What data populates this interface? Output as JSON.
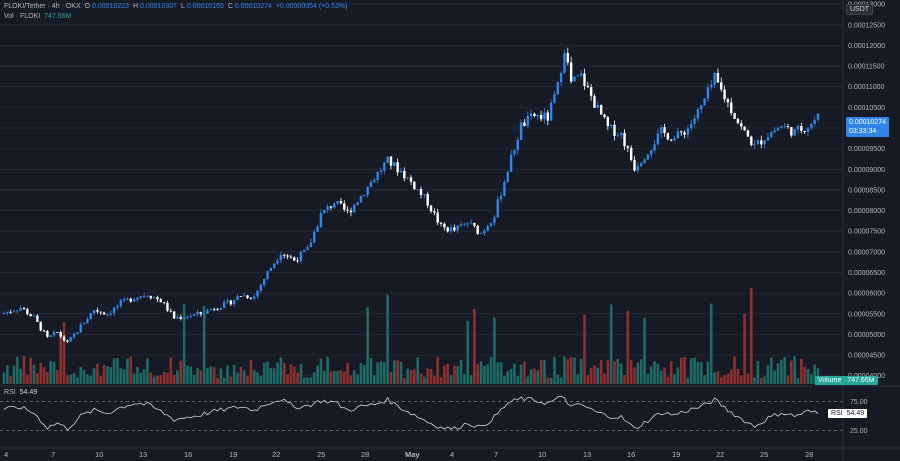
{
  "legend": {
    "symbol": "FLOKI/Tether · 4h · OKX",
    "o_label": "O",
    "o_value": "0.00010223",
    "h_label": "H",
    "h_value": "0.00010307",
    "l_label": "L",
    "l_value": "0.00010165",
    "c_label": "C",
    "c_value": "0.00010274",
    "change": "+0.00000054 (+0.53%)",
    "vol_label": "Vol · FLOKI",
    "vol_value": "747.66M"
  },
  "price_axis": {
    "currency": "USDT",
    "ticks": [
      "0.00013000",
      "0.00012500",
      "0.00012000",
      "0.00011500",
      "0.00011000",
      "0.00010500",
      "0.00010000",
      "0.00009500",
      "0.00009000",
      "0.00008500",
      "0.00008000",
      "0.00007500",
      "0.00007000",
      "0.00006500",
      "0.00006000",
      "0.00005500",
      "0.00005000",
      "0.00004500",
      "0.00004000"
    ],
    "last_price": "0.00010274",
    "countdown": "03:33:34",
    "volume_label": "Volume",
    "volume_value": "747.66M"
  },
  "rsi": {
    "label": "RSI",
    "value": "54.49",
    "axis_ticks": [
      "75.00",
      "25.00"
    ],
    "tag_label": "RSI",
    "tag_value": "54.49"
  },
  "time_axis": {
    "ticks": [
      "4",
      "7",
      "10",
      "13",
      "16",
      "19",
      "22",
      "25",
      "28",
      "May",
      "4",
      "7",
      "10",
      "13",
      "16",
      "19",
      "22",
      "25",
      "28"
    ]
  },
  "colors": {
    "background": "#161a25",
    "up": "#2f86e8",
    "down": "#ffffff",
    "vol_up": "#1e6b66",
    "vol_down": "#8e2f30",
    "accent_teal": "#26a69a"
  },
  "chart_data": {
    "type": "candlestick",
    "interval": "4h",
    "ylim": [
      3.8e-05,
      0.000131
    ],
    "rsi_lines": [
      75,
      25
    ],
    "close_anchors": [
      [
        0,
        5.52e-05
      ],
      [
        5,
        5.65e-05
      ],
      [
        9,
        5.4e-05
      ],
      [
        13,
        4.9e-05
      ],
      [
        16,
        5.05e-05
      ],
      [
        19,
        4.78e-05
      ],
      [
        23,
        5.2e-05
      ],
      [
        27,
        5.6e-05
      ],
      [
        31,
        5.5e-05
      ],
      [
        35,
        5.75e-05
      ],
      [
        39,
        5.9e-05
      ],
      [
        43,
        5.98e-05
      ],
      [
        47,
        5.82e-05
      ],
      [
        51,
        5.4e-05
      ],
      [
        55,
        5.45e-05
      ],
      [
        59,
        5.5e-05
      ],
      [
        63,
        5.65e-05
      ],
      [
        67,
        5.75e-05
      ],
      [
        71,
        5.95e-05
      ],
      [
        75,
        5.92e-05
      ],
      [
        79,
        6.5e-05
      ],
      [
        83,
        7e-05
      ],
      [
        87,
        6.8e-05
      ],
      [
        91,
        7.05e-05
      ],
      [
        95,
        7.9e-05
      ],
      [
        99,
        8.2e-05
      ],
      [
        103,
        7.95e-05
      ],
      [
        107,
        8.35e-05
      ],
      [
        111,
        8.8e-05
      ],
      [
        115,
        9.2e-05
      ],
      [
        119,
        8.95e-05
      ],
      [
        123,
        8.6e-05
      ],
      [
        127,
        8.2e-05
      ],
      [
        131,
        7.6e-05
      ],
      [
        135,
        7.52e-05
      ],
      [
        139,
        7.7e-05
      ],
      [
        143,
        7.45e-05
      ],
      [
        147,
        7.9e-05
      ],
      [
        151,
        9e-05
      ],
      [
        155,
        0.0001005
      ],
      [
        159,
        0.000103
      ],
      [
        163,
        0.0001025
      ],
      [
        166,
        0.00011
      ],
      [
        168,
        0.0001195
      ],
      [
        170,
        0.000111
      ],
      [
        173,
        0.0001125
      ],
      [
        177,
        0.000106
      ],
      [
        181,
        0.0001
      ],
      [
        185,
        9.85e-05
      ],
      [
        189,
        9.05e-05
      ],
      [
        193,
        9.45e-05
      ],
      [
        197,
        9.9e-05
      ],
      [
        201,
        9.75e-05
      ],
      [
        205,
        0.0001
      ],
      [
        209,
        0.000105
      ],
      [
        213,
        0.000112
      ],
      [
        217,
        0.000106
      ],
      [
        221,
        0.0001
      ],
      [
        225,
        9.55e-05
      ],
      [
        229,
        9.85e-05
      ],
      [
        233,
        0.0001005
      ],
      [
        237,
        9.9e-05
      ],
      [
        241,
        0.0001005
      ],
      [
        244,
        0.0001027
      ]
    ],
    "rsi_anchors": [
      [
        0,
        62
      ],
      [
        5,
        65
      ],
      [
        9,
        55
      ],
      [
        13,
        30
      ],
      [
        16,
        38
      ],
      [
        19,
        28
      ],
      [
        23,
        50
      ],
      [
        27,
        60
      ],
      [
        31,
        55
      ],
      [
        35,
        65
      ],
      [
        39,
        72
      ],
      [
        43,
        70
      ],
      [
        47,
        58
      ],
      [
        51,
        44
      ],
      [
        55,
        48
      ],
      [
        59,
        52
      ],
      [
        63,
        58
      ],
      [
        67,
        62
      ],
      [
        71,
        66
      ],
      [
        75,
        60
      ],
      [
        79,
        72
      ],
      [
        83,
        79
      ],
      [
        87,
        65
      ],
      [
        91,
        68
      ],
      [
        95,
        76
      ],
      [
        99,
        74
      ],
      [
        103,
        60
      ],
      [
        107,
        66
      ],
      [
        111,
        70
      ],
      [
        115,
        78
      ],
      [
        119,
        64
      ],
      [
        123,
        52
      ],
      [
        127,
        40
      ],
      [
        131,
        30
      ],
      [
        135,
        28
      ],
      [
        139,
        38
      ],
      [
        143,
        30
      ],
      [
        147,
        48
      ],
      [
        151,
        72
      ],
      [
        155,
        80
      ],
      [
        159,
        77
      ],
      [
        163,
        72
      ],
      [
        166,
        80
      ],
      [
        168,
        82
      ],
      [
        170,
        65
      ],
      [
        173,
        70
      ],
      [
        177,
        58
      ],
      [
        181,
        50
      ],
      [
        185,
        48
      ],
      [
        189,
        28
      ],
      [
        193,
        42
      ],
      [
        197,
        56
      ],
      [
        201,
        52
      ],
      [
        205,
        60
      ],
      [
        209,
        66
      ],
      [
        213,
        78
      ],
      [
        217,
        60
      ],
      [
        221,
        45
      ],
      [
        225,
        32
      ],
      [
        229,
        46
      ],
      [
        233,
        56
      ],
      [
        237,
        50
      ],
      [
        241,
        58
      ],
      [
        244,
        54.49
      ]
    ]
  }
}
